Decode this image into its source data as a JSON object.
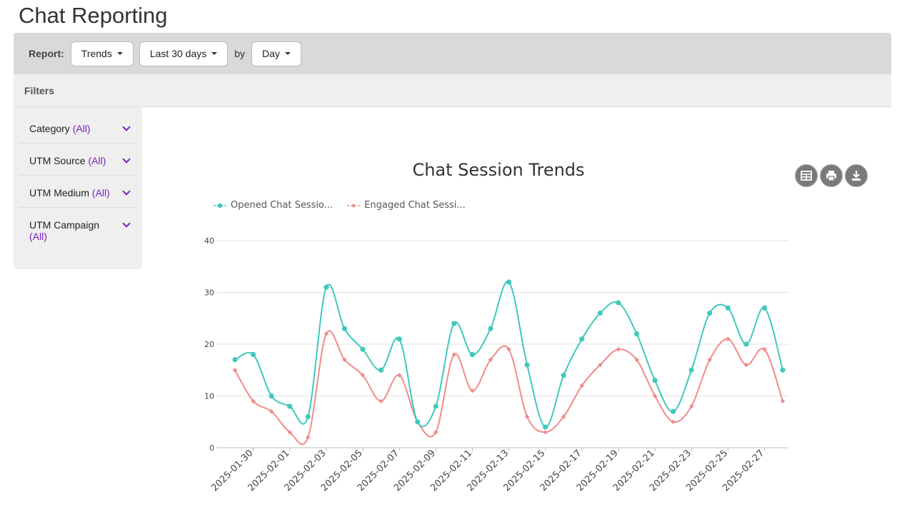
{
  "page": {
    "title": "Chat Reporting"
  },
  "report_bar": {
    "label": "Report:",
    "type_value": "Trends",
    "range_value": "Last 30 days",
    "by_label": "by",
    "interval_value": "Day"
  },
  "filters": {
    "title": "Filters",
    "items": [
      {
        "label": "Category",
        "value": "(All)"
      },
      {
        "label": "UTM Source",
        "value": "(All)"
      },
      {
        "label": "UTM Medium",
        "value": "(All)"
      },
      {
        "label": "UTM Campaign",
        "value": "(All)"
      }
    ]
  },
  "toolbar_icons": [
    "table-icon",
    "print-icon",
    "download-icon"
  ],
  "chart_data": {
    "type": "line",
    "title": "Chat Session Trends",
    "ylim": [
      0,
      40
    ],
    "yticks": [
      0,
      10,
      20,
      30,
      40
    ],
    "grid": true,
    "legend_position": "top-left",
    "x": [
      "2025-01-29",
      "2025-01-30",
      "2025-01-31",
      "2025-02-01",
      "2025-02-02",
      "2025-02-03",
      "2025-02-04",
      "2025-02-05",
      "2025-02-06",
      "2025-02-07",
      "2025-02-08",
      "2025-02-09",
      "2025-02-10",
      "2025-02-11",
      "2025-02-12",
      "2025-02-13",
      "2025-02-14",
      "2025-02-15",
      "2025-02-16",
      "2025-02-17",
      "2025-02-18",
      "2025-02-19",
      "2025-02-20",
      "2025-02-21",
      "2025-02-22",
      "2025-02-23",
      "2025-02-24",
      "2025-02-25",
      "2025-02-26",
      "2025-02-27",
      "2025-02-28"
    ],
    "xtick_labels": [
      "2025-01-30",
      "2025-02-01",
      "2025-02-03",
      "2025-02-05",
      "2025-02-07",
      "2025-02-09",
      "2025-02-11",
      "2025-02-13",
      "2025-02-15",
      "2025-02-17",
      "2025-02-19",
      "2025-02-21",
      "2025-02-23",
      "2025-02-25",
      "2025-02-27"
    ],
    "series": [
      {
        "name": "Opened Chat Sessio...",
        "color": "#3ec9bb",
        "marker": "circle",
        "values": [
          17,
          18,
          10,
          8,
          6,
          31,
          23,
          19,
          15,
          21,
          5,
          8,
          24,
          18,
          23,
          32,
          16,
          4,
          14,
          21,
          26,
          28,
          22,
          13,
          7,
          15,
          26,
          27,
          20,
          27,
          15
        ]
      },
      {
        "name": "Engaged Chat Sessi...",
        "color": "#f28b8b",
        "marker": "diamond",
        "values": [
          15,
          9,
          7,
          3,
          2,
          22,
          17,
          14,
          9,
          14,
          5,
          3,
          18,
          11,
          17,
          19,
          6,
          3,
          6,
          12,
          16,
          19,
          17,
          10,
          5,
          8,
          17,
          21,
          16,
          19,
          9
        ]
      }
    ]
  }
}
